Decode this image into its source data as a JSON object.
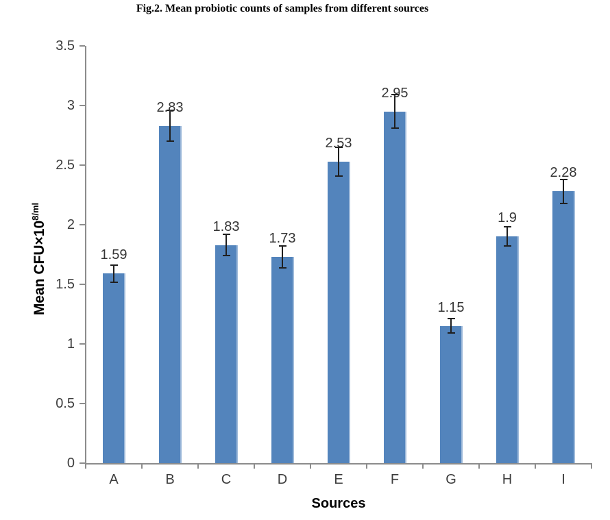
{
  "figure": {
    "title": "Fig.2. Mean probiotic counts of samples from different sources"
  },
  "chart_data": {
    "type": "bar",
    "title": "Fig.2. Mean probiotic counts of samples from different sources",
    "categories": [
      "A",
      "B",
      "C",
      "D",
      "E",
      "F",
      "G",
      "H",
      "I"
    ],
    "values": [
      1.59,
      2.83,
      1.83,
      1.73,
      2.53,
      2.95,
      1.15,
      1.9,
      2.28
    ],
    "value_labels": [
      "1.59",
      "2.83",
      "1.83",
      "1.73",
      "2.53",
      "2.95",
      "1.15",
      "1.9",
      "2.28"
    ],
    "error_bars": [
      0.07,
      0.13,
      0.09,
      0.09,
      0.12,
      0.14,
      0.06,
      0.08,
      0.1
    ],
    "xlabel": "Sources",
    "ylabel": "Mean CFU×10⁸/ml",
    "ylabel_base": "Mean CFU×10",
    "ylabel_sup": "8/ml",
    "ylim": [
      0,
      3.5
    ],
    "ytick_step": 0.5,
    "ytick_labels": [
      "0",
      "0.5",
      "1",
      "1.5",
      "2",
      "2.5",
      "3",
      "3.5"
    ],
    "grid": false,
    "legend": false,
    "colors": {
      "bar_fill": "#5384bc",
      "bar_edge": "#9fbada",
      "axis": "#8c8c8c",
      "error_bar": "#1f1f1f",
      "tick_text": "#3d3d3d",
      "label_text": "#353535",
      "title_text": "#000000"
    }
  }
}
